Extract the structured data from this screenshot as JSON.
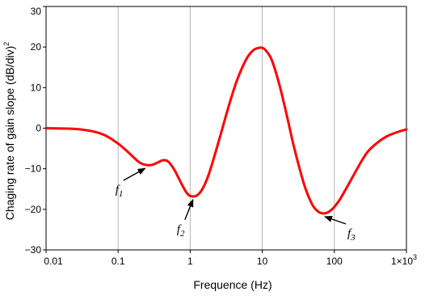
{
  "chart_data": {
    "type": "line",
    "title": "",
    "xlabel": "Frequence (Hz)",
    "ylabel": "Chaging rate of gain slope (dB/div)",
    "ylabel_superscript": "2",
    "x_scale": "log",
    "xlim": [
      0.01,
      1000
    ],
    "ylim": [
      -30,
      30
    ],
    "x_ticks": [
      0.01,
      0.1,
      1,
      10,
      100,
      1000
    ],
    "x_tick_labels": [
      "0.01",
      "0.1",
      "1",
      "10",
      "100",
      "1×10"
    ],
    "x_tick_label_last_superscript": "3",
    "y_ticks": [
      -30,
      -20,
      -10,
      0,
      10,
      20,
      30
    ],
    "y_tick_labels": [
      "−30",
      "−20",
      "−10",
      "0",
      "10",
      "20",
      "30"
    ],
    "grid": {
      "vertical": true,
      "horizontal": false
    },
    "series": [
      {
        "color": "#ff0000",
        "x": [
          0.01,
          0.02,
          0.03,
          0.05,
          0.07,
          0.1,
          0.13,
          0.16,
          0.2,
          0.25,
          0.3,
          0.35,
          0.4,
          0.45,
          0.5,
          0.6,
          0.7,
          0.8,
          0.9,
          1.0,
          1.15,
          1.3,
          1.5,
          1.8,
          2.2,
          2.7,
          3.5,
          4.5,
          6,
          7.5,
          9,
          10,
          11,
          13,
          15,
          18,
          22,
          27,
          33,
          40,
          50,
          60,
          70,
          80,
          90,
          100,
          120,
          150,
          200,
          250,
          300,
          400,
          500,
          600,
          800,
          1000
        ],
        "y": [
          0,
          -0.1,
          -0.3,
          -1,
          -2,
          -3.8,
          -5.5,
          -7,
          -8.5,
          -9.1,
          -9,
          -8.5,
          -8,
          -7.9,
          -8.3,
          -10.2,
          -12.5,
          -14.5,
          -16,
          -16.7,
          -16.8,
          -16.3,
          -14.8,
          -11.5,
          -6.5,
          -1,
          6,
          12,
          17,
          19.2,
          19.8,
          19.8,
          19.3,
          17.5,
          14.5,
          9.5,
          3,
          -4,
          -10,
          -15,
          -19,
          -20.6,
          -21,
          -20.8,
          -20.2,
          -19.4,
          -17.5,
          -14.5,
          -10.5,
          -7.5,
          -5.5,
          -3.5,
          -2.3,
          -1.6,
          -0.8,
          -0.3
        ]
      }
    ],
    "annotations": [
      {
        "label": "f",
        "subscript": "1",
        "x": 0.25,
        "y": -9.1
      },
      {
        "label": "f",
        "subscript": "2",
        "x": 1.15,
        "y": -16.8
      },
      {
        "label": "f",
        "subscript": "3",
        "x": 70,
        "y": -21
      }
    ]
  }
}
